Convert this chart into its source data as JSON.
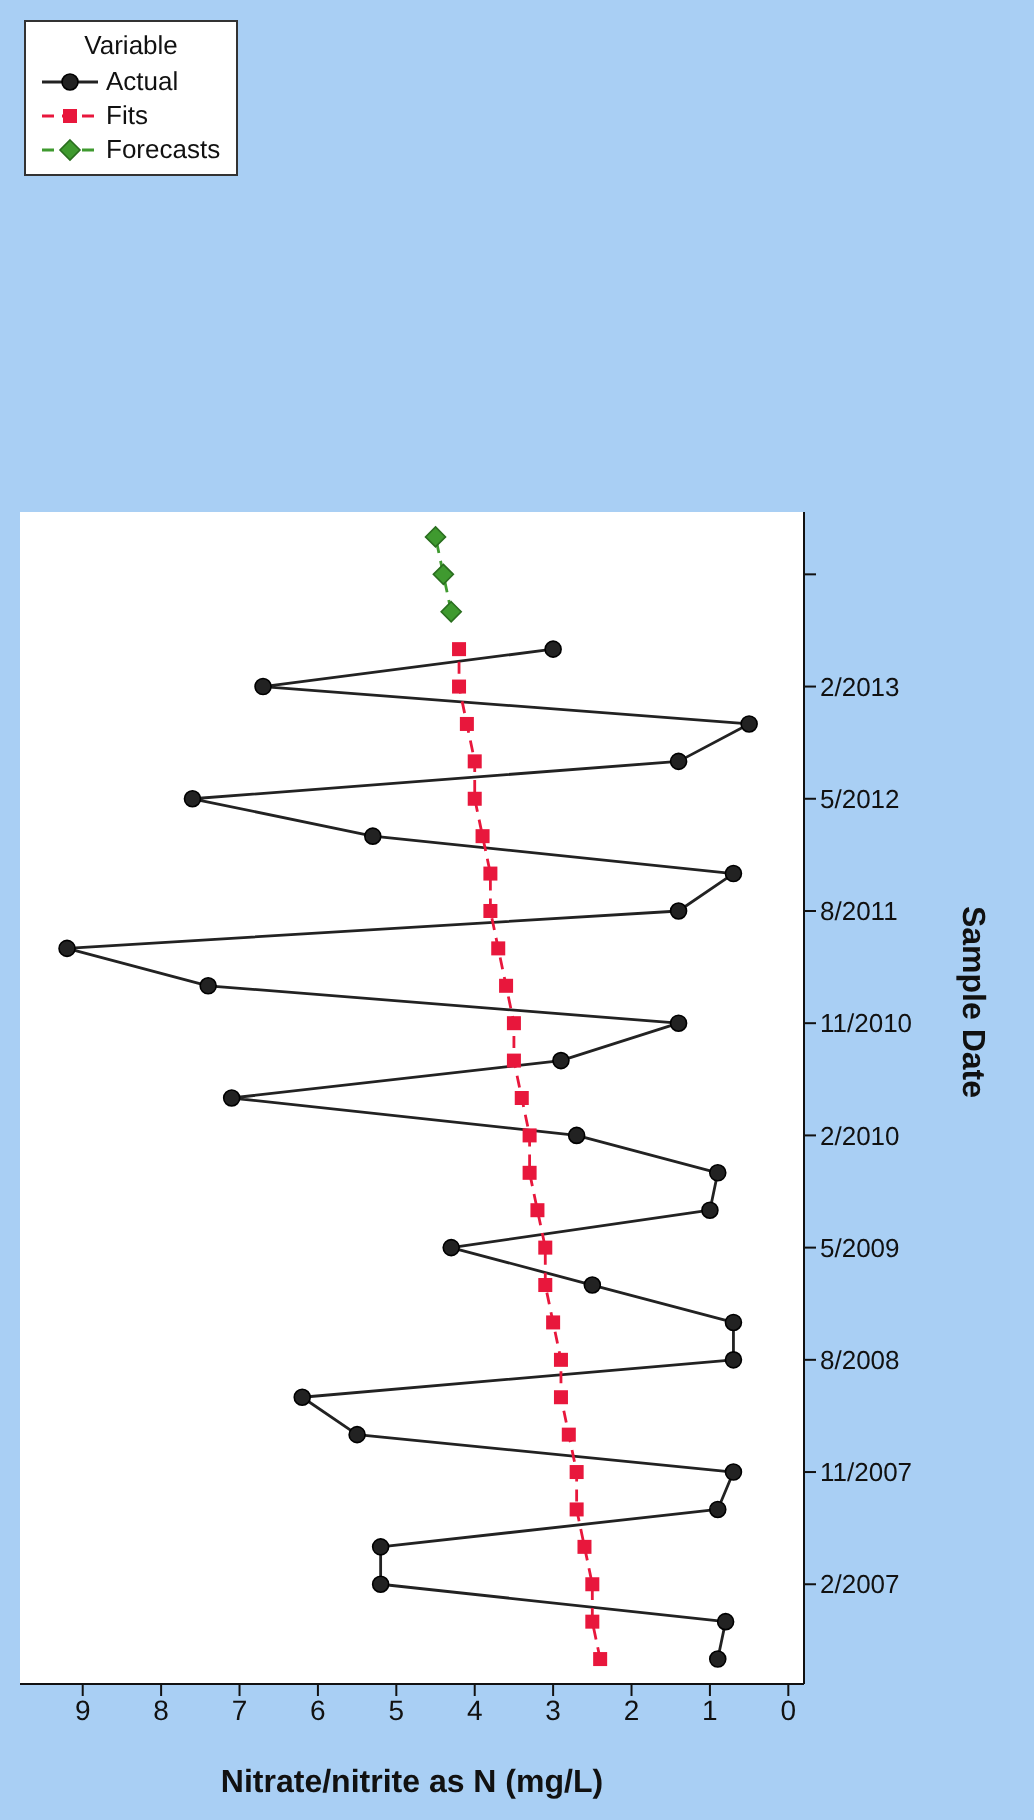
{
  "chart_data": {
    "type": "line",
    "orientation": "horizontal",
    "xlabel": "Nitrate/nitrite as N (mg/L)",
    "ylabel": "Sample Date",
    "legend_title": "Variable",
    "legend": "top left",
    "grid": false,
    "x": [
      "2006-08",
      "2006-11",
      "2007-02",
      "2007-05",
      "2007-08",
      "2007-11",
      "2008-02",
      "2008-05",
      "2008-08",
      "2008-11",
      "2009-02",
      "2009-05",
      "2009-08",
      "2009-11",
      "2010-02",
      "2010-05",
      "2010-08",
      "2010-11",
      "2011-02",
      "2011-05",
      "2011-08",
      "2011-11",
      "2012-02",
      "2012-05",
      "2012-08",
      "2012-11",
      "2013-02",
      "2013-05"
    ],
    "series": [
      {
        "name": "Actual",
        "color": "#222222",
        "marker": "circle",
        "line_style": "solid",
        "values": [
          0.9,
          0.8,
          5.2,
          5.2,
          0.9,
          0.7,
          5.5,
          6.2,
          0.7,
          0.7,
          2.5,
          4.3,
          1.0,
          0.9,
          2.7,
          7.1,
          2.9,
          1.4,
          7.4,
          9.2,
          1.4,
          0.7,
          5.3,
          7.6,
          1.4,
          0.5,
          6.7,
          3.0
        ]
      },
      {
        "name": "Fits",
        "color": "#e8173c",
        "marker": "square",
        "line_style": "dashed",
        "values": [
          2.4,
          2.5,
          2.5,
          2.6,
          2.7,
          2.7,
          2.8,
          2.9,
          2.9,
          3.0,
          3.1,
          3.1,
          3.2,
          3.3,
          3.3,
          3.4,
          3.5,
          3.5,
          3.6,
          3.7,
          3.8,
          3.8,
          3.9,
          4.0,
          4.0,
          4.1,
          4.2,
          4.2
        ]
      },
      {
        "name": "Forecasts",
        "color": "#3f9a2f",
        "marker": "diamond",
        "line_style": "dashed",
        "x": [
          "2013-08",
          "2013-11",
          "2014-02"
        ],
        "values": [
          4.3,
          4.4,
          4.5
        ]
      }
    ],
    "ylim": [
      "2006-06",
      "2014-04"
    ],
    "yticks": [
      {
        "value": "2007-02",
        "label": "2/2007"
      },
      {
        "value": "2007-11",
        "label": "11/2007"
      },
      {
        "value": "2008-08",
        "label": "8/2008"
      },
      {
        "value": "2009-05",
        "label": "5/2009"
      },
      {
        "value": "2010-02",
        "label": "2/2010"
      },
      {
        "value": "2010-11",
        "label": "11/2010"
      },
      {
        "value": "2011-08",
        "label": "8/2011"
      },
      {
        "value": "2012-05",
        "label": "5/2012"
      },
      {
        "value": "2013-02",
        "label": "2/2013"
      },
      {
        "value": "2013-11",
        "label": null
      }
    ],
    "xlim": [
      9.8,
      -0.2
    ],
    "xticks": [
      0,
      1,
      2,
      3,
      4,
      5,
      6,
      7,
      8,
      9
    ]
  }
}
